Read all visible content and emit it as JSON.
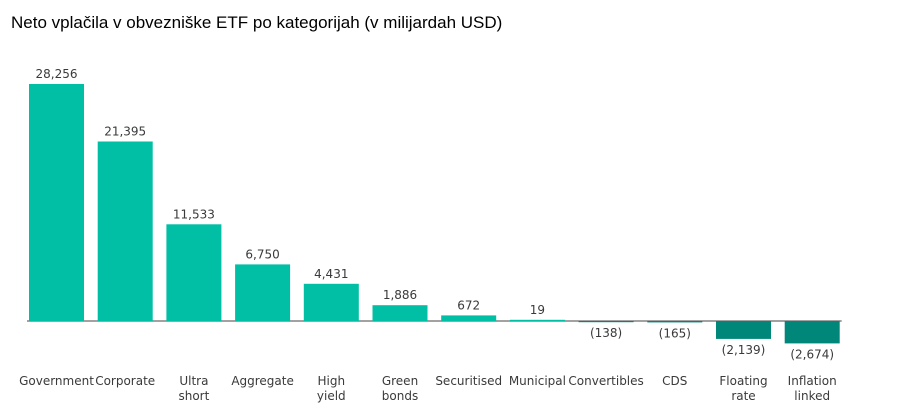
{
  "title": "Neto vplačila v obvezniške ETF po kategorijah (v milijardah USD)",
  "colors": {
    "positive": "#00BFA5",
    "negative": "#008779",
    "baseline": "#444444",
    "text": "#3a3a3a"
  },
  "chart_data": {
    "type": "bar",
    "title": "Neto vplačila v obvezniške ETF po kategorijah (v milijardah USD)",
    "categories": [
      "Government",
      "Corporate",
      "Ultra short",
      "Aggregate",
      "High yield",
      "Green bonds",
      "Securitised",
      "Municipal",
      "Convertibles",
      "CDS",
      "Floating rate",
      "Inflation linked"
    ],
    "category_lines": [
      [
        "Government"
      ],
      [
        "Corporate"
      ],
      [
        "Ultra",
        "short"
      ],
      [
        "Aggregate"
      ],
      [
        "High",
        "yield"
      ],
      [
        "Green",
        "bonds"
      ],
      [
        "Securitised"
      ],
      [
        "Municipal"
      ],
      [
        "Convertibles"
      ],
      [
        "CDS"
      ],
      [
        "Floating",
        "rate"
      ],
      [
        "Inflation",
        "linked"
      ]
    ],
    "values": [
      28256,
      21395,
      11533,
      6750,
      4431,
      1886,
      672,
      19,
      -138,
      -165,
      -2139,
      -2674
    ],
    "value_labels": [
      "28,256",
      "21,395",
      "11,533",
      "6,750",
      "4,431",
      "1,886",
      "672",
      "19",
      "(138)",
      "(165)",
      "(2,139)",
      "(2,674)"
    ],
    "xlabel": "",
    "ylabel": "",
    "grid": false,
    "legend": "none"
  }
}
